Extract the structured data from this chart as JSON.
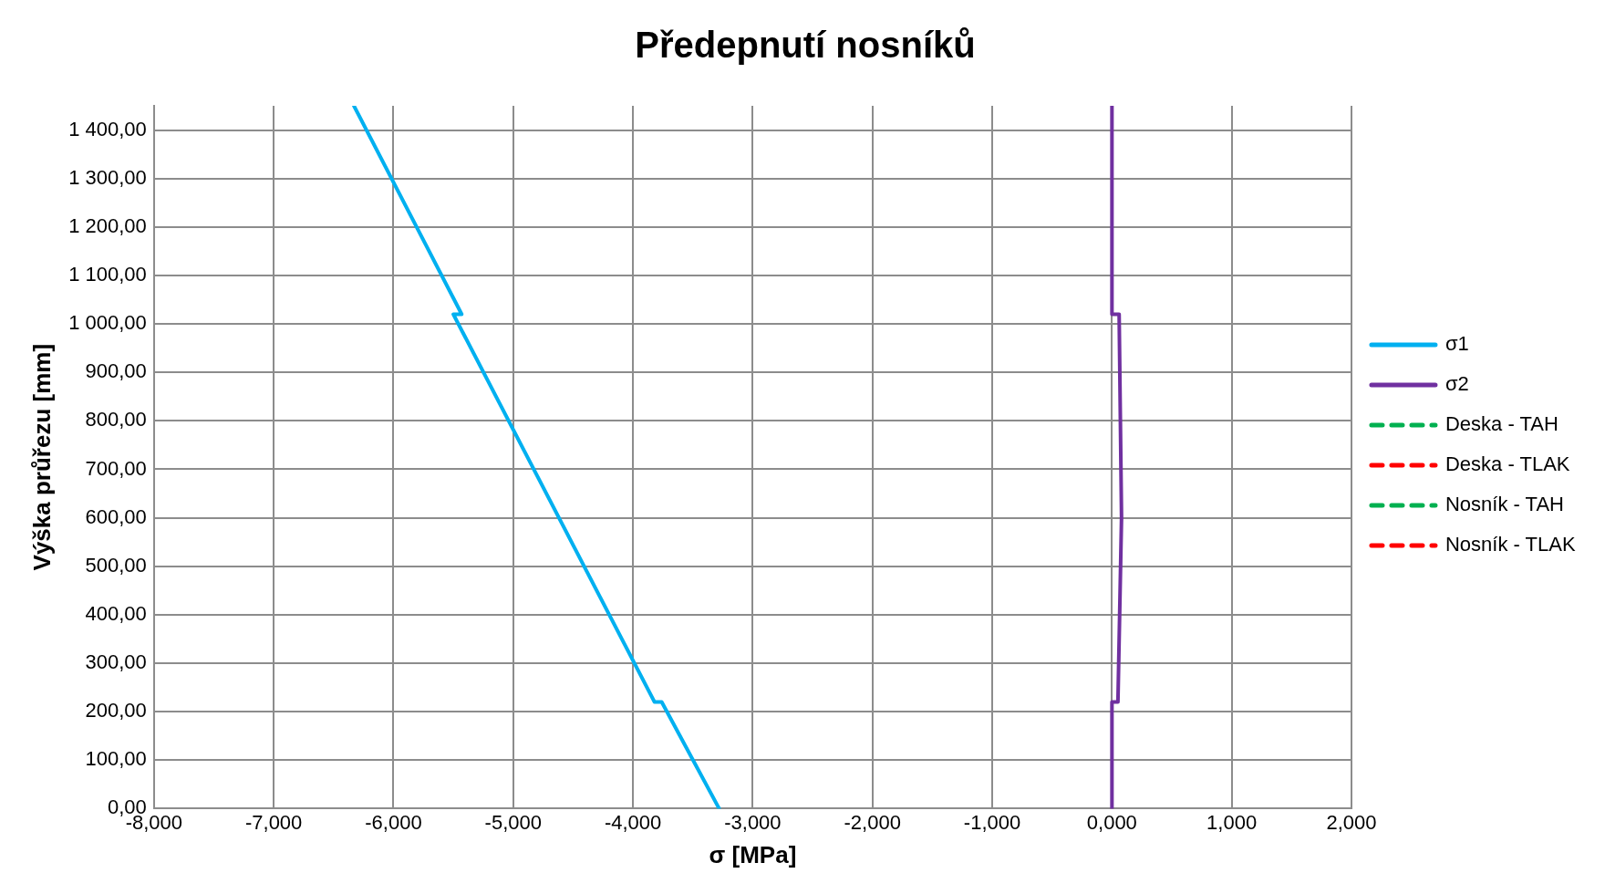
{
  "chart_data": {
    "type": "line",
    "title": "Předepnutí nosníků",
    "xlabel": "σ [MPa]",
    "ylabel": "Výška průřezu [mm]",
    "series": [
      {
        "name": "σ1",
        "color": "#00b0f0",
        "x": [
          -3.28,
          -3.76,
          -3.82,
          -5.5,
          -5.43,
          -6.33
        ],
        "values": [
          0,
          220,
          220,
          1020,
          1020,
          1450
        ]
      },
      {
        "name": "σ2",
        "color": "#7030a0",
        "x": [
          0.0,
          0.0,
          0.05,
          0.08,
          0.06,
          0.0,
          0.0
        ],
        "values": [
          0,
          220,
          220,
          600,
          1020,
          1020,
          1450
        ]
      },
      {
        "name": "Deska - TAH",
        "color": "#00b050",
        "line_style": "dashed"
      },
      {
        "name": "Deska - TLAK",
        "color": "#ff0000",
        "line_style": "dashed"
      },
      {
        "name": "Nosník - TAH",
        "color": "#00b050",
        "line_style": "dashed"
      },
      {
        "name": "Nosník - TLAK",
        "color": "#ff0000",
        "line_style": "dashed"
      }
    ],
    "xlim": [
      -8,
      2
    ],
    "xticks": [
      {
        "value": -8,
        "label": "-8,000"
      },
      {
        "value": -7,
        "label": "-7,000"
      },
      {
        "value": -6,
        "label": "-6,000"
      },
      {
        "value": -5,
        "label": "-5,000"
      },
      {
        "value": -4,
        "label": "-4,000"
      },
      {
        "value": -3,
        "label": "-3,000"
      },
      {
        "value": -2,
        "label": "-2,000"
      },
      {
        "value": -1,
        "label": "-1,000"
      },
      {
        "value": 0,
        "label": "0,000"
      },
      {
        "value": 1,
        "label": "1,000"
      },
      {
        "value": 2,
        "label": "2,000"
      }
    ],
    "ylim": [
      0,
      1450
    ],
    "yticks": [
      {
        "value": 0,
        "label": "0,00"
      },
      {
        "value": 100,
        "label": "100,00"
      },
      {
        "value": 200,
        "label": "200,00"
      },
      {
        "value": 300,
        "label": "300,00"
      },
      {
        "value": 400,
        "label": "400,00"
      },
      {
        "value": 500,
        "label": "500,00"
      },
      {
        "value": 600,
        "label": "600,00"
      },
      {
        "value": 700,
        "label": "700,00"
      },
      {
        "value": 800,
        "label": "800,00"
      },
      {
        "value": 900,
        "label": "900,00"
      },
      {
        "value": 1000,
        "label": "1 000,00"
      },
      {
        "value": 1100,
        "label": "1 100,00"
      },
      {
        "value": 1200,
        "label": "1 200,00"
      },
      {
        "value": 1300,
        "label": "1 300,00"
      },
      {
        "value": 1400,
        "label": "1 400,00"
      }
    ],
    "grid": true,
    "legend": "right",
    "marker": "none",
    "line_style": "solid"
  }
}
